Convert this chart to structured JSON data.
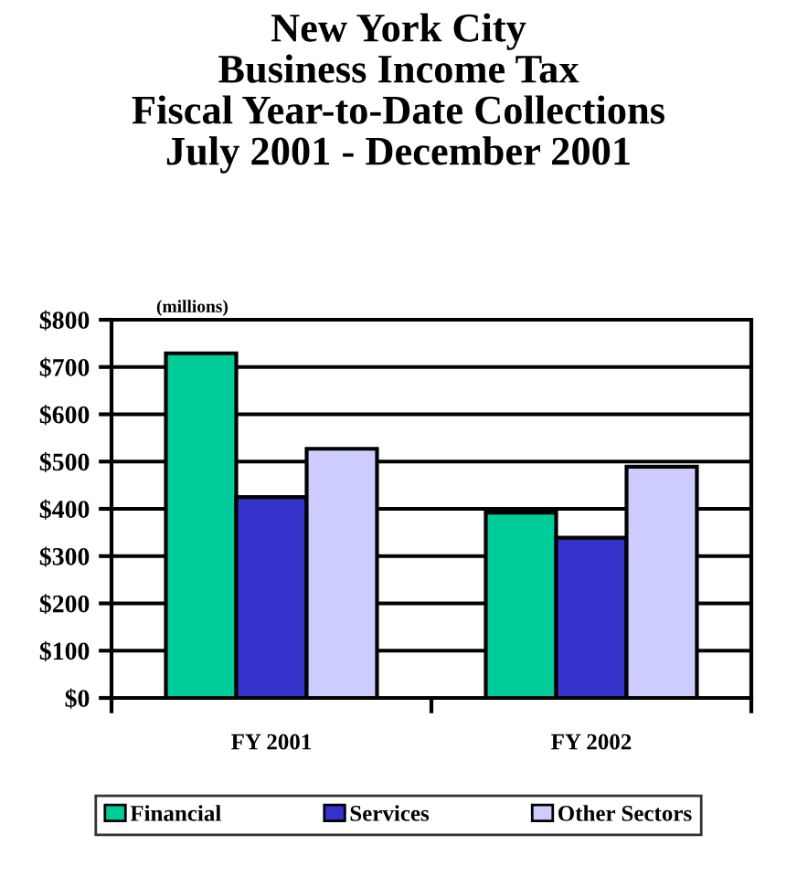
{
  "chart_data": {
    "type": "bar",
    "title": "New York City\nBusiness Income Tax\nFiscal Year-to-Date Collections\nJuly 2001 - December 2001",
    "categories": [
      "FY 2001",
      "FY 2002"
    ],
    "series": [
      {
        "name": "Financial",
        "color": "#00cc99",
        "values": [
          729,
          392
        ]
      },
      {
        "name": "Services",
        "color": "#3333cc",
        "values": [
          425,
          339
        ]
      },
      {
        "name": "Other Sectors",
        "color": "#ccccff",
        "values": [
          527,
          489
        ]
      }
    ],
    "ylim": [
      0,
      800
    ],
    "yticks": [
      {
        "value": 0,
        "label": "$0"
      },
      {
        "value": 100,
        "label": "$100"
      },
      {
        "value": 200,
        "label": "$200"
      },
      {
        "value": 300,
        "label": "$300"
      },
      {
        "value": 400,
        "label": "$400"
      },
      {
        "value": 500,
        "label": "$500"
      },
      {
        "value": 600,
        "label": "$600"
      },
      {
        "value": 700,
        "label": "$700"
      },
      {
        "value": 800,
        "label": "$800"
      }
    ],
    "grid": "y",
    "legend": "bottom",
    "annotations": [
      "(millions)"
    ]
  }
}
